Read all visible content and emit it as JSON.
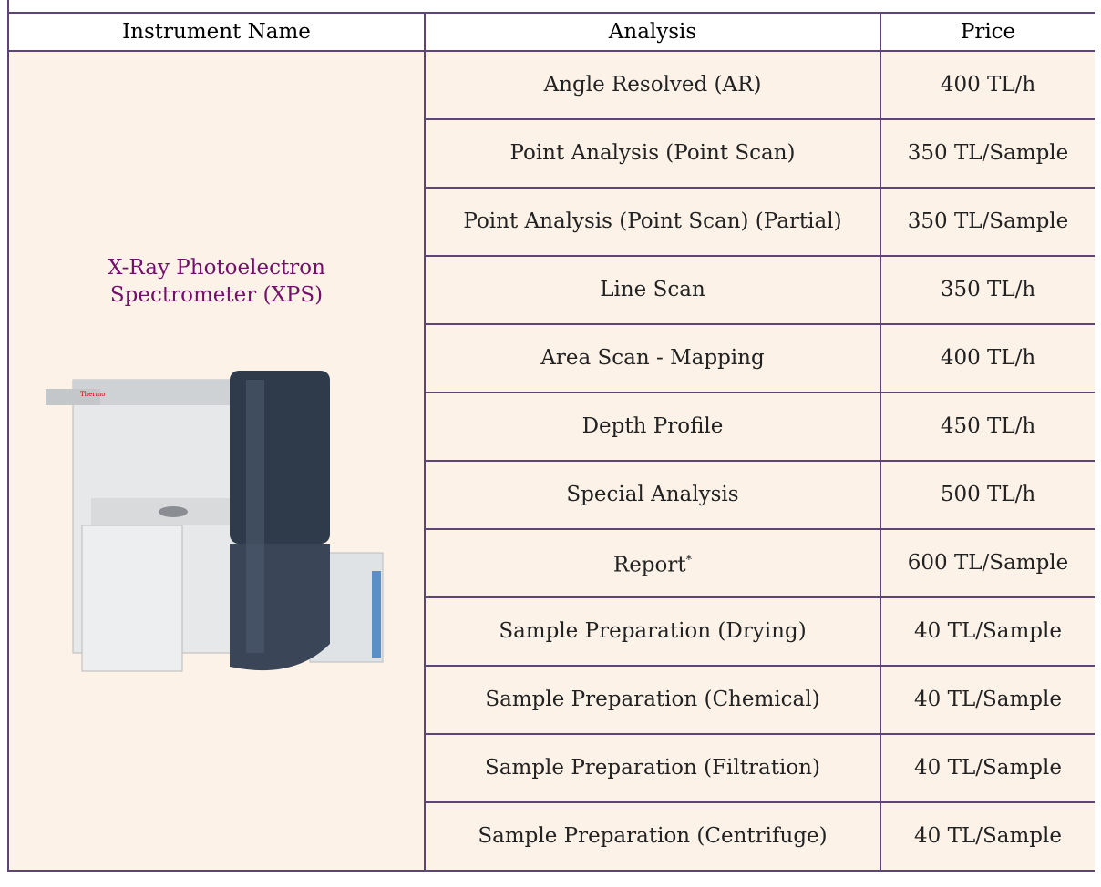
{
  "table": {
    "header": [
      "Instrument Name",
      "Analysis",
      "Price"
    ],
    "instrument": [
      "X-Ray Photoelectron",
      "Spectrometer (XPS)"
    ],
    "rows": [
      {
        "analysis": "Angle Resolved (AR)",
        "price": "400 TL/h"
      },
      {
        "analysis": "Point Analysis (Point Scan)",
        "price": "350 TL/Sample"
      },
      {
        "analysis": "Point Analysis (Point Scan) (Partial)",
        "price": "350 TL/Sample"
      },
      {
        "analysis": "Line Scan",
        "price": "350 TL/h"
      },
      {
        "analysis": "Area Scan - Mapping",
        "price": "400 TL/h"
      },
      {
        "analysis": "Depth Profile",
        "price": "450 TL/h"
      },
      {
        "analysis": "Special Analysis",
        "price": "500 TL/h"
      },
      {
        "analysis": "Report",
        "note": "*",
        "price": "600 TL/Sample"
      },
      {
        "analysis": "Sample Preparation (Drying)",
        "price": "40 TL/Sample"
      },
      {
        "analysis": "Sample Preparation (Chemical)",
        "price": "40 TL/Sample"
      },
      {
        "analysis": "Sample Preparation (Filtration)",
        "price": "40 TL/Sample"
      },
      {
        "analysis": "Sample Preparation (Centrifuge)",
        "price": "40 TL/Sample"
      }
    ]
  }
}
